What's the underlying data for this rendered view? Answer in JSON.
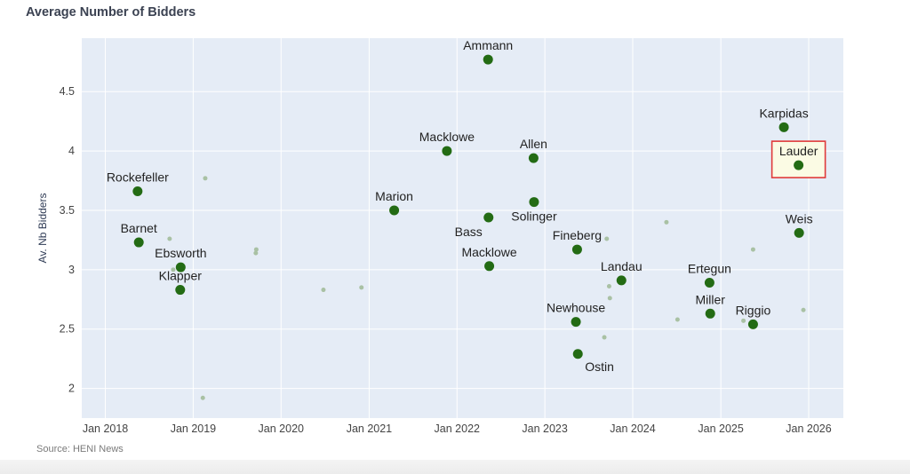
{
  "chart_data": {
    "type": "scatter",
    "title": "Average Number of Bidders",
    "ylabel": "Av. Nb Bidders",
    "xlabel": "",
    "source": "Source: HENI News",
    "xlim": [
      "2017-09-25",
      "2026-05-25"
    ],
    "ylim": [
      1.75,
      4.95
    ],
    "x_ticks": [
      {
        "date": "2018-01-01",
        "label": "Jan 2018"
      },
      {
        "date": "2019-01-01",
        "label": "Jan 2019"
      },
      {
        "date": "2020-01-01",
        "label": "Jan 2020"
      },
      {
        "date": "2021-01-01",
        "label": "Jan 2021"
      },
      {
        "date": "2022-01-01",
        "label": "Jan 2022"
      },
      {
        "date": "2023-01-01",
        "label": "Jan 2023"
      },
      {
        "date": "2024-01-01",
        "label": "Jan 2024"
      },
      {
        "date": "2025-01-01",
        "label": "Jan 2025"
      },
      {
        "date": "2026-01-01",
        "label": "Jan 2026"
      }
    ],
    "y_ticks": [
      {
        "value": 2,
        "label": "2"
      },
      {
        "value": 2.5,
        "label": "2.5"
      },
      {
        "value": 3,
        "label": "3"
      },
      {
        "value": 3.5,
        "label": "3.5"
      },
      {
        "value": 4,
        "label": "4"
      },
      {
        "value": 4.5,
        "label": "4.5"
      }
    ],
    "grid": true,
    "colors": {
      "plot_bg": "#e5ecf6",
      "grid": "#ffffff",
      "labeled_point": "#236b14",
      "background_point": "#a9c1a4",
      "highlight_fill": "#fbfbe4",
      "highlight_border": "#e03a3a"
    },
    "series": [
      {
        "points": [
          {
            "x": "2018-05-15",
            "y": 3.66,
            "label": "Rockefeller",
            "anchor": "above"
          },
          {
            "x": "2018-05-20",
            "y": 3.23,
            "label": "Barnet",
            "anchor": "above"
          },
          {
            "x": "2018-11-10",
            "y": 3.02,
            "label": "Ebsworth",
            "anchor": "above"
          },
          {
            "x": "2018-11-08",
            "y": 2.83,
            "label": "Klapper",
            "anchor": "above"
          },
          {
            "x": "2021-04-15",
            "y": 3.5,
            "label": "Marion",
            "anchor": "above"
          },
          {
            "x": "2021-11-20",
            "y": 4.0,
            "label": "Macklowe",
            "anchor": "above"
          },
          {
            "x": "2022-05-10",
            "y": 4.77,
            "label": "Ammann",
            "anchor": "above"
          },
          {
            "x": "2022-05-12",
            "y": 3.44,
            "label": "Bass",
            "anchor": "below-left"
          },
          {
            "x": "2022-05-15",
            "y": 3.03,
            "label": "Macklowe",
            "anchor": "above"
          },
          {
            "x": "2022-11-15",
            "y": 3.94,
            "label": "Allen",
            "anchor": "above"
          },
          {
            "x": "2022-11-17",
            "y": 3.57,
            "label": "Solinger",
            "anchor": "below"
          },
          {
            "x": "2023-05-15",
            "y": 3.17,
            "label": "Fineberg",
            "anchor": "above"
          },
          {
            "x": "2023-05-10",
            "y": 2.56,
            "label": "Newhouse",
            "anchor": "above"
          },
          {
            "x": "2023-05-18",
            "y": 2.29,
            "label": "Ostin",
            "anchor": "below-right"
          },
          {
            "x": "2023-11-15",
            "y": 2.91,
            "label": "Landau",
            "anchor": "above"
          },
          {
            "x": "2024-11-15",
            "y": 2.89,
            "label": "Ertegun",
            "anchor": "above"
          },
          {
            "x": "2024-11-18",
            "y": 2.63,
            "label": "Miller",
            "anchor": "above"
          },
          {
            "x": "2025-05-15",
            "y": 2.54,
            "label": "Riggio",
            "anchor": "above"
          },
          {
            "x": "2025-09-20",
            "y": 4.2,
            "label": "Karpidas",
            "anchor": "above"
          },
          {
            "x": "2025-11-20",
            "y": 3.88,
            "label": "Lauder",
            "anchor": "above",
            "highlight": true
          },
          {
            "x": "2025-11-22",
            "y": 3.31,
            "label": "Weis",
            "anchor": "above"
          }
        ]
      },
      {
        "points": [
          {
            "x": "2018-09-25",
            "y": 3.26
          },
          {
            "x": "2018-10-10",
            "y": 3.0
          },
          {
            "x": "2019-02-20",
            "y": 3.77
          },
          {
            "x": "2019-02-10",
            "y": 1.92
          },
          {
            "x": "2019-09-20",
            "y": 3.17
          },
          {
            "x": "2019-09-18",
            "y": 3.14
          },
          {
            "x": "2020-06-25",
            "y": 2.83
          },
          {
            "x": "2020-11-30",
            "y": 2.85
          },
          {
            "x": "2023-09-15",
            "y": 3.26
          },
          {
            "x": "2023-09-25",
            "y": 2.86
          },
          {
            "x": "2023-09-28",
            "y": 2.76
          },
          {
            "x": "2023-09-05",
            "y": 2.43
          },
          {
            "x": "2024-05-20",
            "y": 3.4
          },
          {
            "x": "2024-07-05",
            "y": 2.58
          },
          {
            "x": "2025-05-15",
            "y": 3.17
          },
          {
            "x": "2025-04-05",
            "y": 2.57
          },
          {
            "x": "2025-12-10",
            "y": 2.66
          }
        ]
      }
    ]
  }
}
